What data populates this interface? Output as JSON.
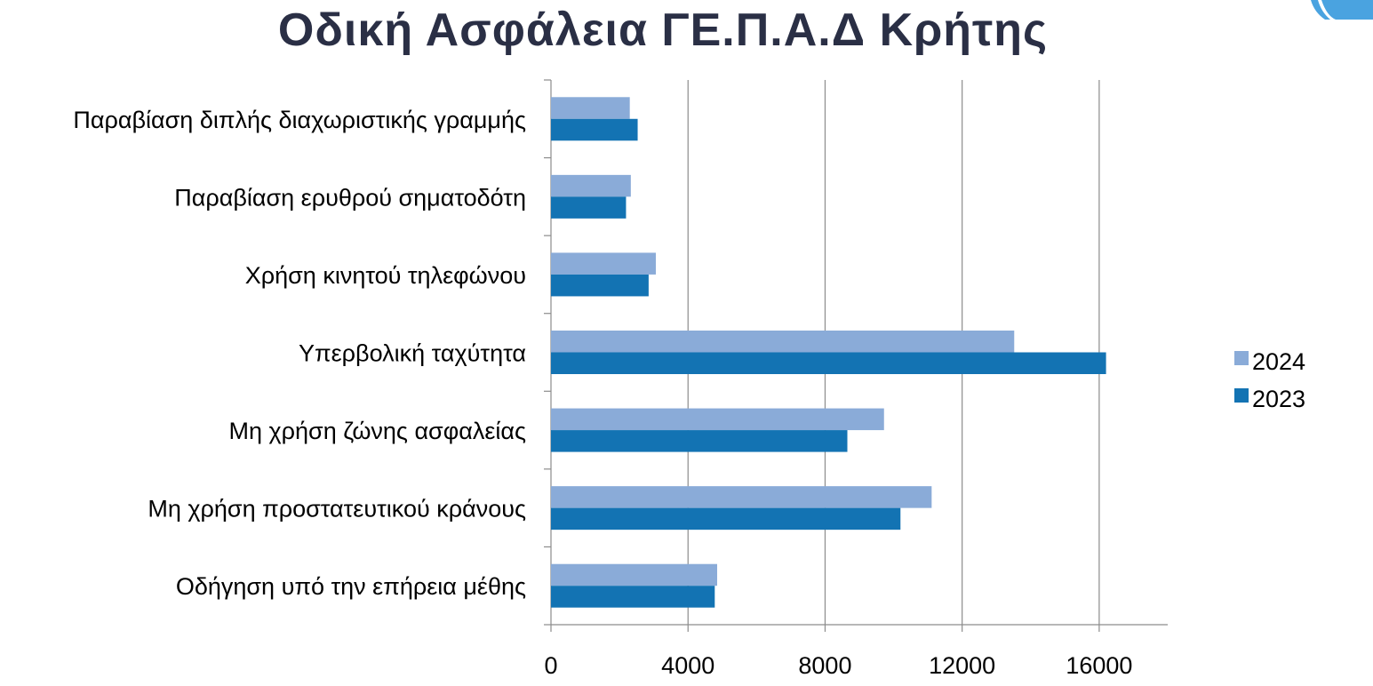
{
  "colors": {
    "series_2024": "#8aabd8",
    "series_2023": "#1373b3",
    "grid": "#8c8c8c",
    "title": "#2a2f45",
    "accent": "#4aa3e0"
  },
  "chart_data": {
    "type": "bar",
    "orientation": "horizontal",
    "title": "Οδική Ασφάλεια ΓΕ.Π.Α.Δ Κρήτης",
    "categories": [
      "Παραβίαση διπλής διαχωριστικής γραμμής",
      "Παραβίαση ερυθρού σηματοδότη",
      "Χρήση κινητού τηλεφώνου",
      "Υπερβολική ταχύτητα",
      "Μη χρήση ζώνης ασφαλείας",
      "Μη χρήση προστατευτικού κράνους",
      "Οδήγηση υπό την επήρεια μέθης"
    ],
    "series": [
      {
        "name": "2024",
        "values": [
          2300,
          2330,
          3060,
          13520,
          9720,
          11110,
          4850
        ]
      },
      {
        "name": "2023",
        "values": [
          2530,
          2190,
          2850,
          16200,
          8650,
          10200,
          4780
        ]
      }
    ],
    "xlim": [
      0,
      18000
    ],
    "xticks": [
      "0",
      "4000",
      "8000",
      "12000",
      "16000"
    ],
    "xlabel": "",
    "ylabel": "",
    "grid": true,
    "legend_position": "right"
  }
}
